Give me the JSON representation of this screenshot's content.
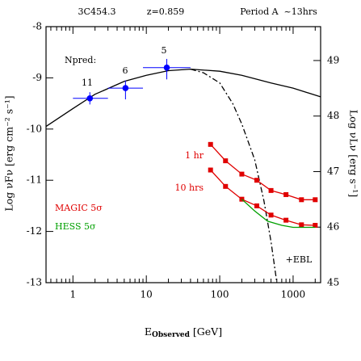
{
  "chart_data": {
    "type": "line",
    "title_parts": [
      "3C454.3",
      "z=0.859",
      "Period A  ~13hrs"
    ],
    "x_label": {
      "main": "E",
      "sub": "Observed",
      "unit": " [GeV]"
    },
    "y_label": "Log νFν [erg cm⁻² s⁻¹]",
    "y2_label": "Log νLν [erg s⁻¹]",
    "xscale": "log",
    "xlim": [
      0.43,
      2370
    ],
    "ylim": [
      -13,
      -8
    ],
    "y2lim": [
      45,
      49.61
    ],
    "xticks": [
      1,
      10,
      100,
      1000
    ],
    "xticks_minor": [
      0.5,
      0.6,
      0.7,
      0.8,
      0.9,
      2,
      3,
      4,
      5,
      6,
      7,
      8,
      9,
      20,
      30,
      40,
      50,
      60,
      70,
      80,
      90,
      200,
      300,
      400,
      500,
      600,
      700,
      800,
      900,
      2000
    ],
    "yticks": [
      -13,
      -12,
      -11,
      -10,
      -9,
      -8
    ],
    "y2ticks": [
      45,
      46,
      47,
      48,
      49
    ],
    "series": [
      {
        "name": "model",
        "color": "#000000",
        "dash": "none",
        "x": [
          0.43,
          1,
          2,
          5,
          10,
          20,
          40,
          100,
          200,
          500,
          1000,
          2370
        ],
        "values": [
          -9.95,
          -9.6,
          -9.32,
          -9.07,
          -8.95,
          -8.86,
          -8.83,
          -8.87,
          -8.95,
          -9.1,
          -9.2,
          -9.37
        ]
      },
      {
        "name": "+EBL",
        "color": "#000000",
        "dash": "7 3 2 3",
        "x": [
          40,
          60,
          100,
          150,
          200,
          300,
          400,
          500,
          600
        ],
        "values": [
          -8.83,
          -8.9,
          -9.1,
          -9.5,
          -9.9,
          -10.6,
          -11.4,
          -12.2,
          -13
        ]
      },
      {
        "name": "1 hr",
        "color": "#e00000",
        "dash": "none",
        "markers": true,
        "x": [
          75,
          120,
          200,
          320,
          500,
          800,
          1300,
          2000
        ],
        "values": [
          -10.3,
          -10.62,
          -10.88,
          -11.0,
          -11.2,
          -11.28,
          -11.38,
          -11.38
        ]
      },
      {
        "name": "10 hrs",
        "color": "#e00000",
        "dash": "none",
        "markers": true,
        "x": [
          75,
          120,
          200,
          320,
          500,
          800,
          1300,
          2000
        ],
        "values": [
          -10.8,
          -11.12,
          -11.37,
          -11.5,
          -11.68,
          -11.78,
          -11.87,
          -11.88
        ]
      },
      {
        "name": "HESS 5σ",
        "color": "#00a000",
        "dash": "none",
        "x": [
          200,
          300,
          450,
          700,
          1000,
          2000
        ],
        "values": [
          -11.37,
          -11.6,
          -11.8,
          -11.88,
          -11.92,
          -11.92
        ]
      }
    ],
    "points": {
      "color": "#0000ff",
      "x": [
        1.7,
        5.2,
        19
      ],
      "x_low": [
        1.0,
        3.0,
        9.0
      ],
      "x_high": [
        3.0,
        9.0,
        40
      ],
      "values": [
        -9.4,
        -9.2,
        -8.8
      ],
      "y_low": [
        -9.52,
        -9.42,
        -9.03
      ],
      "y_high": [
        -9.28,
        -9.05,
        -8.63
      ],
      "npred_label": "Npred:",
      "npred": [
        "11",
        "6",
        "5"
      ]
    },
    "legend": [
      {
        "label": "MAGIC 5σ",
        "color": "#e00000"
      },
      {
        "label": "HESS 5σ",
        "color": "#00a000"
      }
    ]
  }
}
